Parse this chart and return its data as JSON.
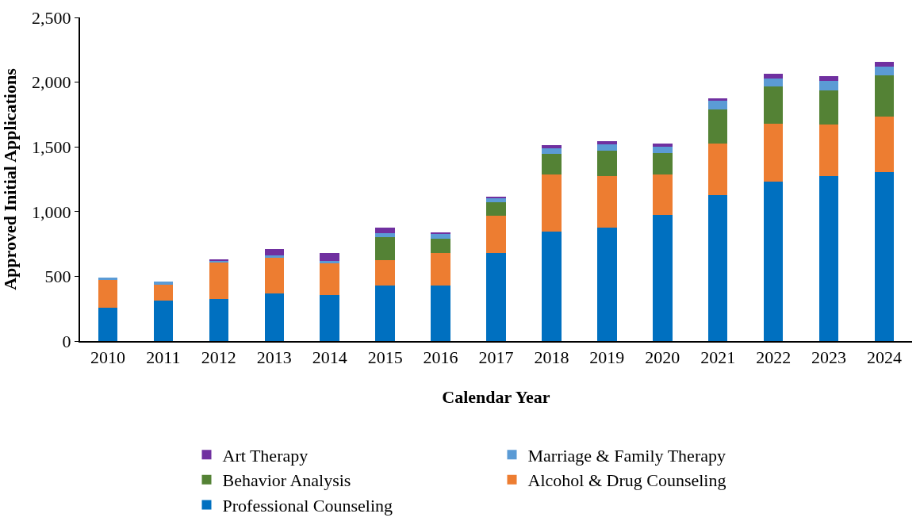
{
  "chart_data": {
    "type": "bar",
    "stacked": true,
    "xlabel": "Calendar Year",
    "ylabel": "Approved Initial Applications",
    "categories": [
      "2010",
      "2011",
      "2012",
      "2013",
      "2014",
      "2015",
      "2016",
      "2017",
      "2018",
      "2019",
      "2020",
      "2021",
      "2022",
      "2023",
      "2024"
    ],
    "series": [
      {
        "name": "Professional Counseling",
        "color": "#0070c0",
        "values": [
          256,
          310,
          326,
          368,
          358,
          428,
          428,
          680,
          848,
          876,
          974,
          1126,
          1234,
          1274,
          1306
        ]
      },
      {
        "name": "Alcohol & Drug Counseling",
        "color": "#ed7d31",
        "values": [
          216,
          128,
          284,
          278,
          244,
          198,
          250,
          288,
          440,
          400,
          310,
          398,
          444,
          398,
          428
        ]
      },
      {
        "name": "Behavior Analysis",
        "color": "#548235",
        "values": [
          0,
          0,
          0,
          0,
          0,
          174,
          110,
          102,
          156,
          196,
          168,
          266,
          286,
          264,
          320
        ]
      },
      {
        "name": "Marriage & Family Therapy",
        "color": "#5b9bd5",
        "values": [
          16,
          24,
          12,
          18,
          18,
          32,
          44,
          30,
          44,
          46,
          50,
          64,
          66,
          76,
          66
        ]
      },
      {
        "name": "Art Therapy",
        "color": "#7030a0",
        "values": [
          0,
          0,
          8,
          44,
          58,
          42,
          6,
          14,
          24,
          24,
          24,
          22,
          34,
          32,
          34
        ]
      }
    ],
    "ylim": [
      0,
      2500
    ],
    "yticks": [
      0,
      {
        "value": 500,
        "label": "500"
      },
      {
        "value": 1000,
        "label": "1,000"
      },
      {
        "value": 1500,
        "label": "1,500"
      },
      {
        "value": 2000,
        "label": "2,000"
      },
      {
        "value": 2500,
        "label": "2,500"
      }
    ],
    "grid": false,
    "legend": "bottom"
  }
}
